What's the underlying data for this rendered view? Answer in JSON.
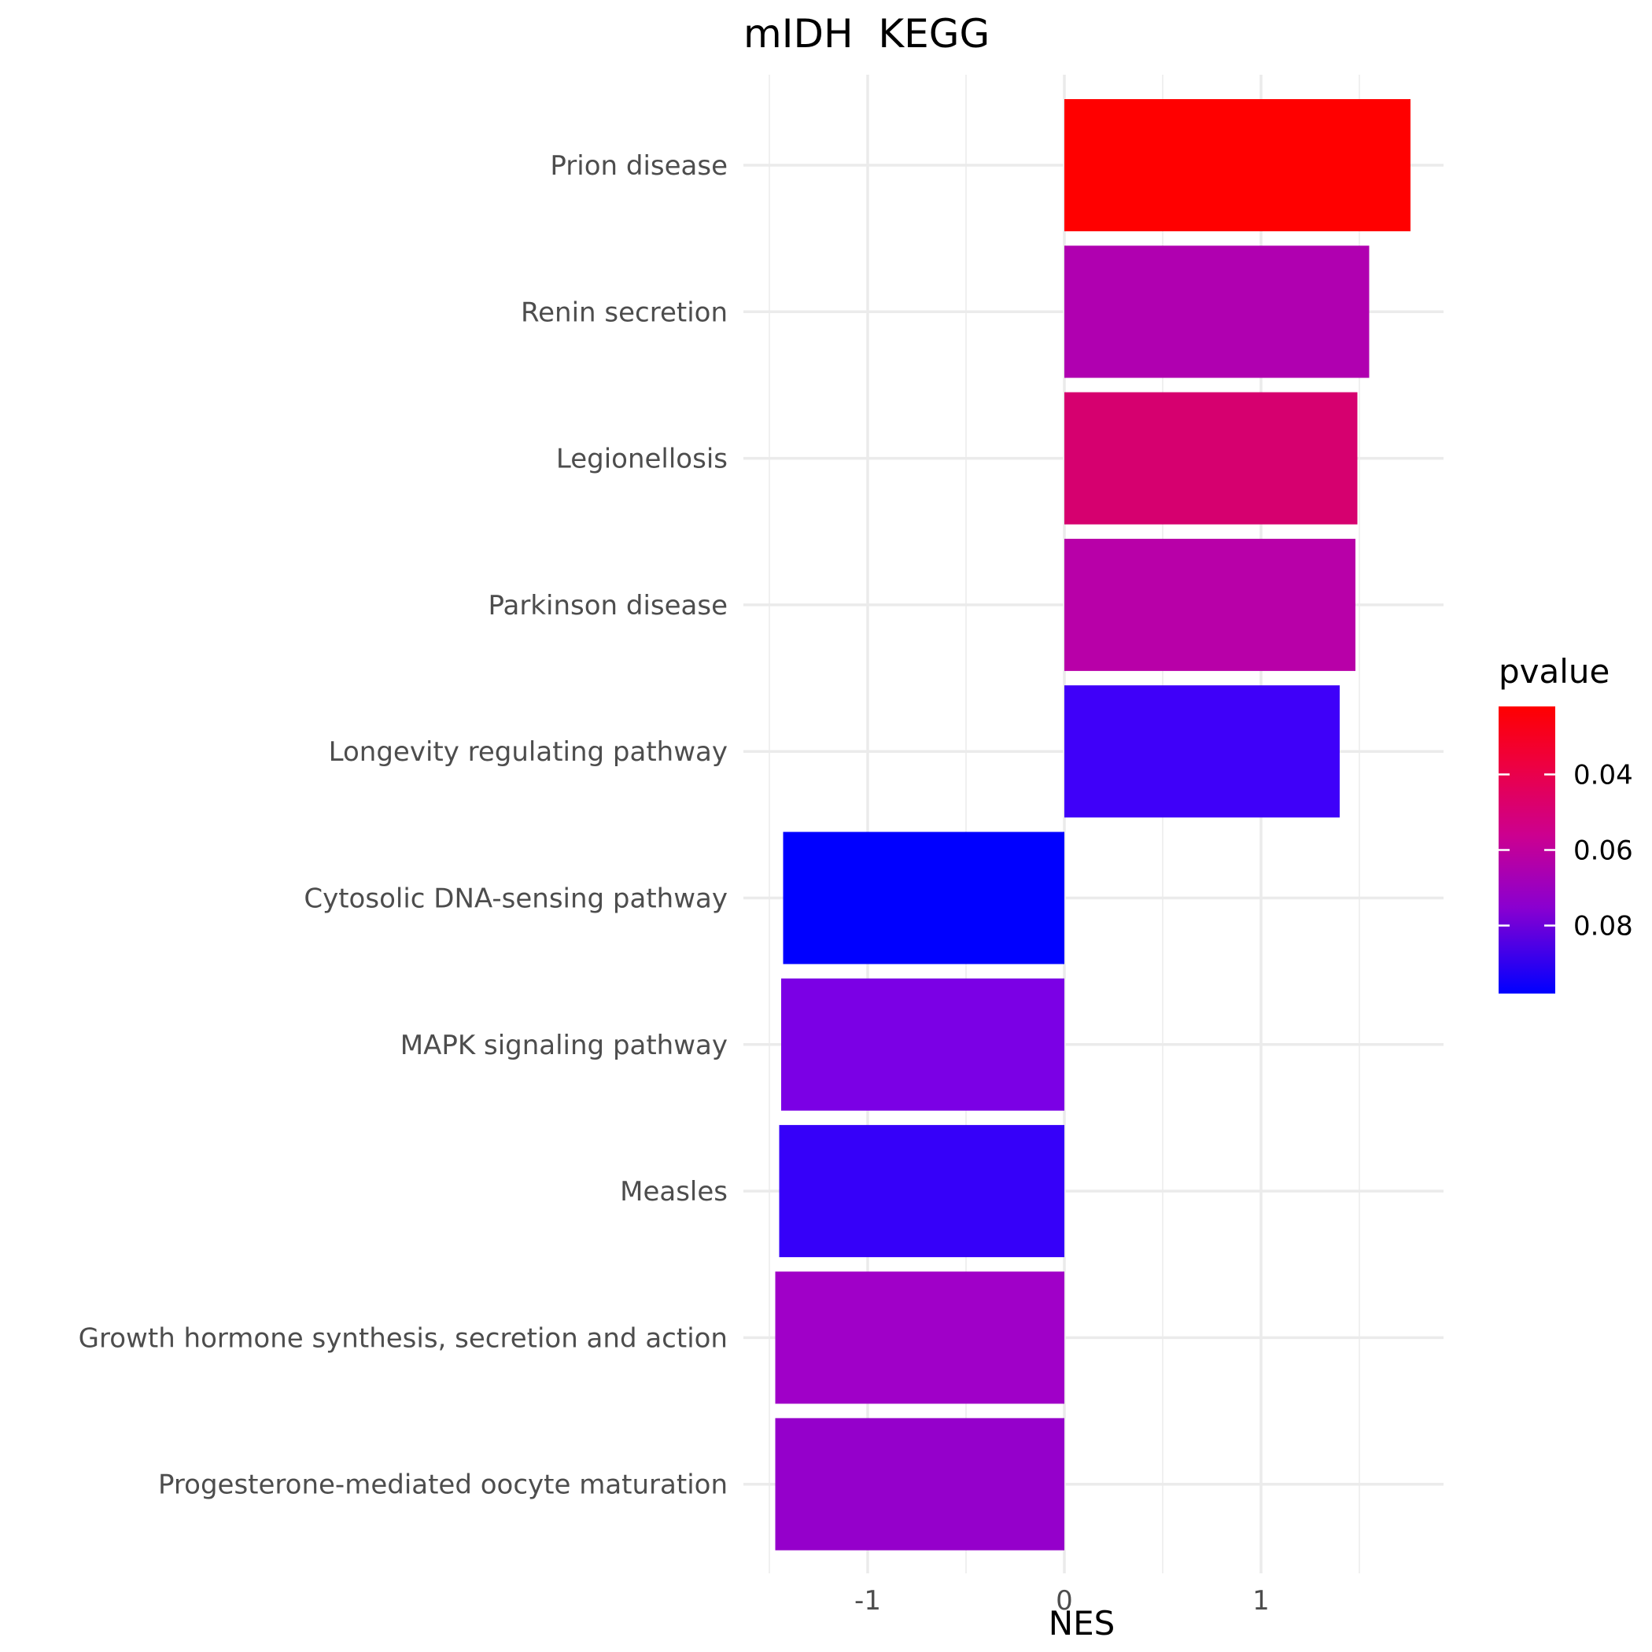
{
  "chart_data": {
    "type": "bar",
    "orientation": "horizontal",
    "title": "mIDH  KEGG",
    "xlabel": "NES",
    "ylabel": "",
    "xlim": [
      -1.5,
      1.9
    ],
    "xticks": [
      -1,
      0,
      1
    ],
    "categories": [
      "Prion disease",
      "Renin secretion",
      "Legionellosis",
      "Parkinson disease",
      "Longevity regulating pathway",
      "Cytosolic DNA-sensing pathway",
      "MAPK signaling pathway",
      "Measles",
      "Growth hormone synthesis, secretion and action",
      "Progesterone-mediated oocyte maturation"
    ],
    "values": [
      1.76,
      1.55,
      1.49,
      1.48,
      1.4,
      -1.43,
      -1.44,
      -1.45,
      -1.47,
      -1.47
    ],
    "colors": [
      "#ff0000",
      "#b000b0",
      "#d6006f",
      "#b800a8",
      "#3f00f9",
      "#0000ff",
      "#7b00e5",
      "#3600f9",
      "#a000c8",
      "#9500cb"
    ],
    "legend": {
      "title": "pvalue",
      "position": "right",
      "range": [
        0.022,
        0.098
      ],
      "ticks": [
        0.04,
        0.06,
        0.08
      ],
      "tick_labels": [
        "0.04",
        "0.06",
        "0.08"
      ],
      "color_low_pvalue": "#ff0000",
      "color_high_pvalue": "#0000ff"
    },
    "grid": true
  }
}
